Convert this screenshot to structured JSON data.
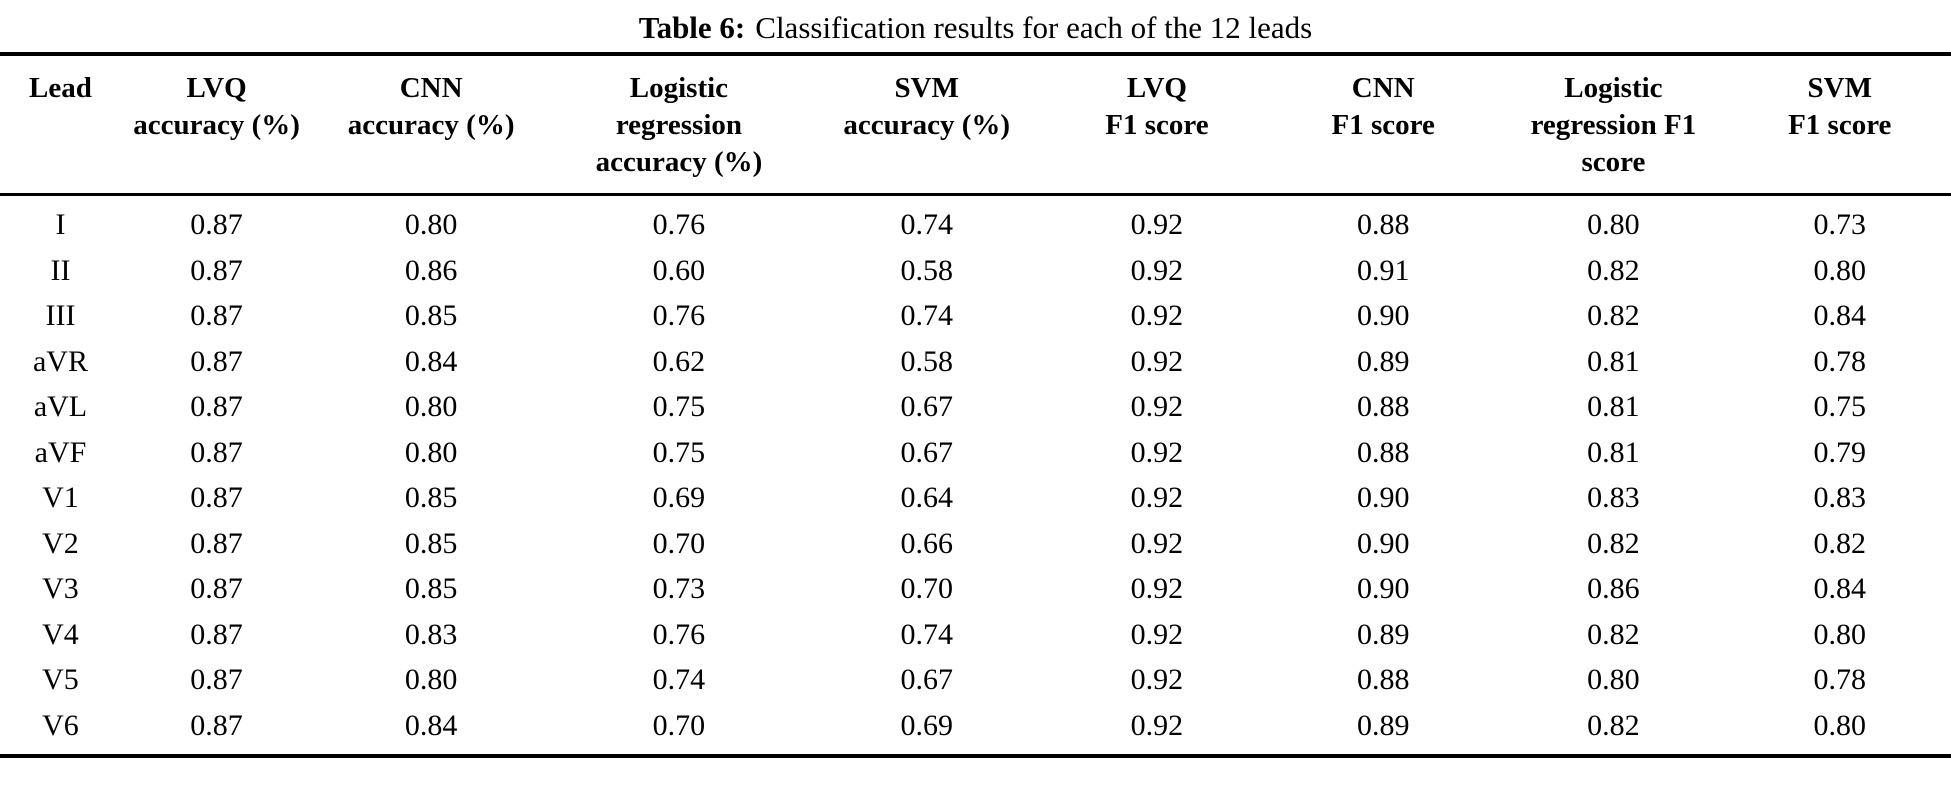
{
  "caption": {
    "label": "Table 6:",
    "text": "Classification results for each of the 12 leads"
  },
  "colors": {
    "text": "#000000",
    "background": "#ffffff",
    "rule": "#000000"
  },
  "chart_data": {
    "type": "table",
    "title": "Table 6: Classification results for each of the 12 leads",
    "columns": [
      "Lead",
      "LVQ accuracy (%)",
      "CNN accuracy (%)",
      "Logistic regression accuracy (%)",
      "SVM accuracy (%)",
      "LVQ F1 score",
      "CNN F1 score",
      "Logistic regression F1 score",
      "SVM F1 score"
    ],
    "header_lines": [
      [
        "Lead"
      ],
      [
        "LVQ",
        "accuracy (%)"
      ],
      [
        "CNN",
        "accuracy (%)"
      ],
      [
        "Logistic",
        "regression",
        "accuracy (%)"
      ],
      [
        "SVM",
        "accuracy (%)"
      ],
      [
        "LVQ",
        "F1 score"
      ],
      [
        "CNN",
        "F1 score"
      ],
      [
        "Logistic",
        "regression F1",
        "score"
      ],
      [
        "SVM",
        "F1 score"
      ]
    ],
    "rows": [
      [
        "I",
        "0.87",
        "0.80",
        "0.76",
        "0.74",
        "0.92",
        "0.88",
        "0.80",
        "0.73"
      ],
      [
        "II",
        "0.87",
        "0.86",
        "0.60",
        "0.58",
        "0.92",
        "0.91",
        "0.82",
        "0.80"
      ],
      [
        "III",
        "0.87",
        "0.85",
        "0.76",
        "0.74",
        "0.92",
        "0.90",
        "0.82",
        "0.84"
      ],
      [
        "aVR",
        "0.87",
        "0.84",
        "0.62",
        "0.58",
        "0.92",
        "0.89",
        "0.81",
        "0.78"
      ],
      [
        "aVL",
        "0.87",
        "0.80",
        "0.75",
        "0.67",
        "0.92",
        "0.88",
        "0.81",
        "0.75"
      ],
      [
        "aVF",
        "0.87",
        "0.80",
        "0.75",
        "0.67",
        "0.92",
        "0.88",
        "0.81",
        "0.79"
      ],
      [
        "V1",
        "0.87",
        "0.85",
        "0.69",
        "0.64",
        "0.92",
        "0.90",
        "0.83",
        "0.83"
      ],
      [
        "V2",
        "0.87",
        "0.85",
        "0.70",
        "0.66",
        "0.92",
        "0.90",
        "0.82",
        "0.82"
      ],
      [
        "V3",
        "0.87",
        "0.85",
        "0.73",
        "0.70",
        "0.92",
        "0.90",
        "0.86",
        "0.84"
      ],
      [
        "V4",
        "0.87",
        "0.83",
        "0.76",
        "0.74",
        "0.92",
        "0.89",
        "0.82",
        "0.80"
      ],
      [
        "V5",
        "0.87",
        "0.80",
        "0.74",
        "0.67",
        "0.92",
        "0.88",
        "0.80",
        "0.78"
      ],
      [
        "V6",
        "0.87",
        "0.84",
        "0.70",
        "0.69",
        "0.92",
        "0.89",
        "0.82",
        "0.80"
      ]
    ]
  }
}
